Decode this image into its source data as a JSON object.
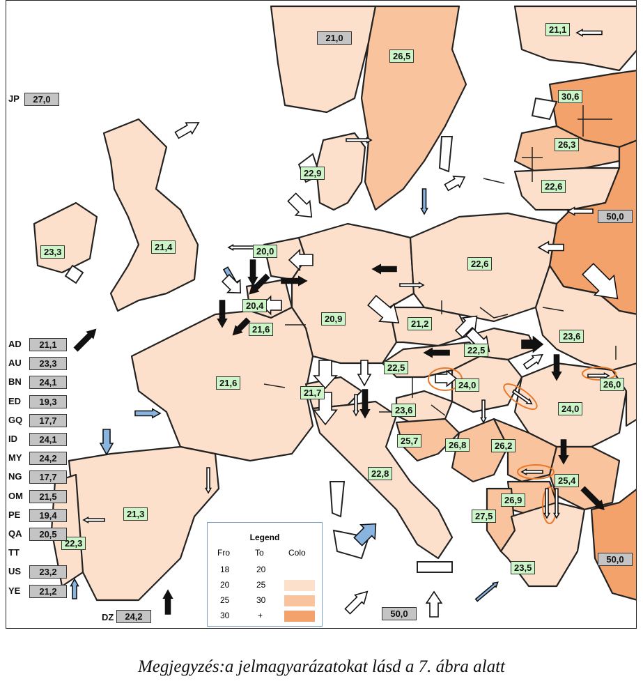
{
  "map": {
    "colors": {
      "c18_20": "#ffffff",
      "c20_25": "#fce0cc",
      "c25_30": "#f9c39e",
      "c30_plus": "#f4a26b",
      "label_green": "#ccf5c8",
      "label_grey": "#c4c4c4",
      "arrow_blue": "#8ab4e0",
      "ring_orange": "#e8782a"
    },
    "regions": [
      {
        "value": "21,0",
        "style": "grey"
      },
      {
        "value": "26,5",
        "style": "green"
      },
      {
        "value": "21,1",
        "style": "green"
      },
      {
        "value": "30,6",
        "style": "green"
      },
      {
        "value": "26,3",
        "style": "green"
      },
      {
        "value": "22,6",
        "style": "green"
      },
      {
        "value": "50,0",
        "style": "grey"
      },
      {
        "value": "22,9",
        "style": "green"
      },
      {
        "value": "27,0",
        "style": "grey"
      },
      {
        "value": "23,3",
        "style": "green"
      },
      {
        "value": "21,4",
        "style": "green"
      },
      {
        "value": "20,0",
        "style": "green"
      },
      {
        "value": "22,6",
        "style": "green"
      },
      {
        "value": "20,4",
        "style": "green"
      },
      {
        "value": "21,6",
        "style": "green"
      },
      {
        "value": "20,9",
        "style": "green"
      },
      {
        "value": "21,2",
        "style": "green"
      },
      {
        "value": "23,6",
        "style": "green"
      },
      {
        "value": "22,5",
        "style": "green"
      },
      {
        "value": "22,5",
        "style": "green"
      },
      {
        "value": "24,0",
        "style": "green"
      },
      {
        "value": "26,0",
        "style": "green"
      },
      {
        "value": "21,6",
        "style": "green"
      },
      {
        "value": "21,7",
        "style": "green"
      },
      {
        "value": "23,6",
        "style": "green"
      },
      {
        "value": "24,0",
        "style": "green"
      },
      {
        "value": "25,7",
        "style": "green"
      },
      {
        "value": "26,8",
        "style": "green"
      },
      {
        "value": "26,2",
        "style": "green"
      },
      {
        "value": "22,8",
        "style": "green"
      },
      {
        "value": "25,4",
        "style": "green"
      },
      {
        "value": "26,9",
        "style": "green"
      },
      {
        "value": "27,5",
        "style": "green"
      },
      {
        "value": "21,3",
        "style": "green"
      },
      {
        "value": "22,3",
        "style": "green"
      },
      {
        "value": "50,0",
        "style": "grey"
      },
      {
        "value": "23,5",
        "style": "green"
      },
      {
        "value": "50,0",
        "style": "grey"
      },
      {
        "value": "24,2",
        "style": "grey"
      }
    ],
    "side_list": [
      {
        "code": "AD",
        "value": "21,1"
      },
      {
        "code": "AU",
        "value": "23,3"
      },
      {
        "code": "BN",
        "value": "24,1"
      },
      {
        "code": "ED",
        "value": "19,3"
      },
      {
        "code": "GQ",
        "value": "17,7"
      },
      {
        "code": "ID",
        "value": "24,1"
      },
      {
        "code": "MY",
        "value": "24,2"
      },
      {
        "code": "NG",
        "value": "17,7"
      },
      {
        "code": "OM",
        "value": "21,5"
      },
      {
        "code": "PE",
        "value": "19,4"
      },
      {
        "code": "QA",
        "value": "20,5"
      },
      {
        "code": "TT",
        "value": ""
      },
      {
        "code": "US",
        "value": "23,2"
      },
      {
        "code": "YE",
        "value": "21,2"
      }
    ],
    "extra_codes": [
      {
        "code": "JP"
      },
      {
        "code": "DZ"
      }
    ],
    "legend": {
      "title": "Legend",
      "headers": [
        "Fro",
        "To",
        "Colo"
      ],
      "rows": [
        {
          "from": "18",
          "to": "20",
          "color_key": "c18_20"
        },
        {
          "from": "20",
          "to": "25",
          "color_key": "c20_25"
        },
        {
          "from": "25",
          "to": "30",
          "color_key": "c25_30"
        },
        {
          "from": "30",
          "to": "+",
          "color_key": "c30_plus"
        }
      ]
    }
  },
  "note": "Megjegyzés:a jelmagyarázatokat lásd a 7. ábra alatt"
}
